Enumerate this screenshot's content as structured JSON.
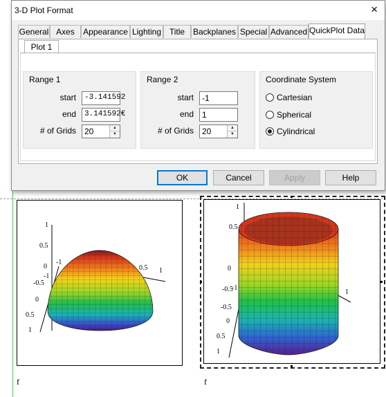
{
  "dialog": {
    "title": "3-D Plot Format",
    "close_icon": "×",
    "tabs": [
      "General",
      "Axes",
      "Appearance",
      "Lighting",
      "Title",
      "Backplanes",
      "Special",
      "Advanced",
      "QuickPlot Data"
    ],
    "active_tab": "QuickPlot Data",
    "subtab": "Plot 1",
    "range1": {
      "title": "Range 1",
      "start_label": "start",
      "start_value": "-3.141592",
      "end_label": "end",
      "end_value": "3.141592€",
      "grids_label": "# of Grids",
      "grids_value": "20"
    },
    "range2": {
      "title": "Range 2",
      "start_label": "start",
      "start_value": "-1",
      "end_label": "end",
      "end_value": "1",
      "grids_label": "# of Grids",
      "grids_value": "20"
    },
    "coordinate_system": {
      "title": "Coordinate System",
      "options": [
        "Cartesian",
        "Spherical",
        "Cylindrical"
      ],
      "selected": "Cylindrical"
    },
    "buttons": {
      "ok": "OK",
      "cancel": "Cancel",
      "apply": "Apply",
      "help": "Help"
    }
  },
  "worksheet": {
    "plot1": {
      "label": "f",
      "ticks_z": [
        "1",
        "0.5",
        "0",
        "-0.5",
        "-1"
      ],
      "ticks_x": [
        "-1",
        "-0.5",
        "0",
        "0.5",
        "1"
      ],
      "tick_right": "1",
      "tick_mid": "0.5"
    },
    "plot2": {
      "label": "f",
      "ticks_z": [
        "1",
        "0.5",
        "0",
        "-0.5",
        "-1"
      ],
      "ticks_x": [
        "-1",
        "-0.5",
        "0",
        "0.5",
        "1"
      ],
      "tick_right": "1"
    }
  },
  "colors": {
    "accent": "#0078d7",
    "ruler": "#46c94a"
  }
}
